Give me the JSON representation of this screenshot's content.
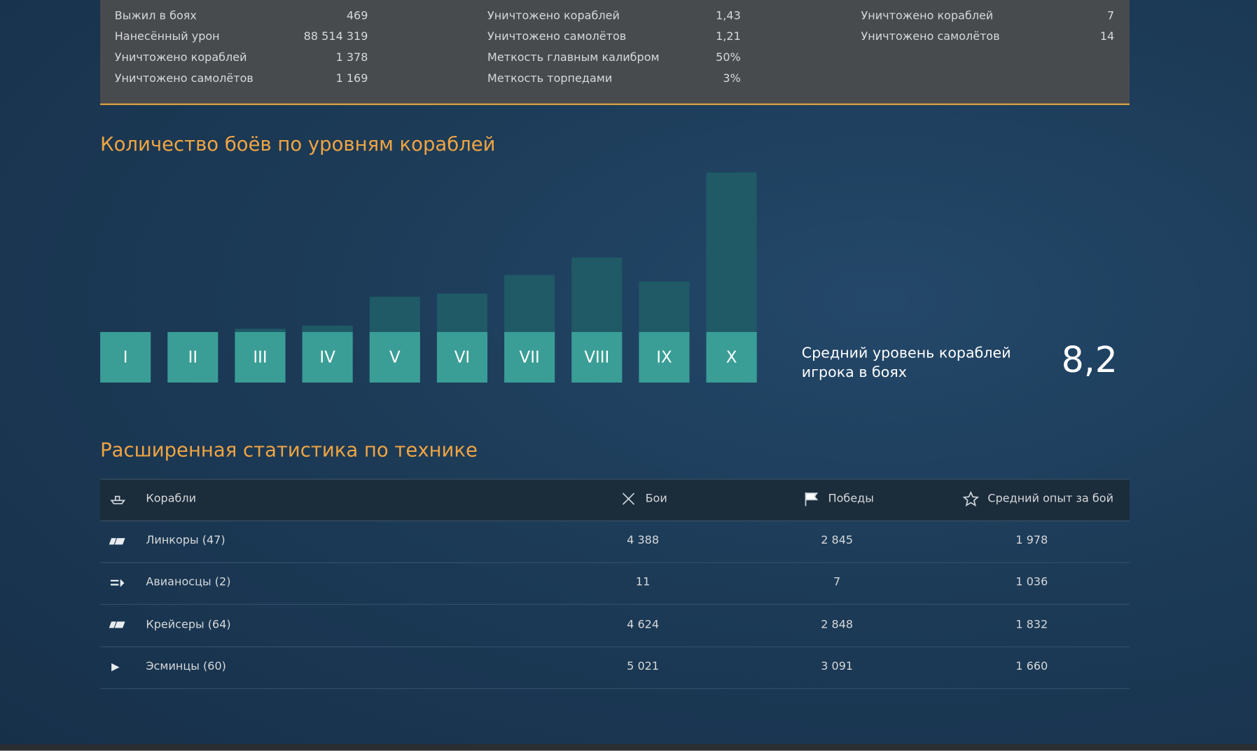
{
  "stats": {
    "columns": [
      [
        {
          "label": "Выжил в боях",
          "value": "469"
        },
        {
          "label": "Нанесённый урон",
          "value": "88 514 319"
        },
        {
          "label": "Уничтожено кораблей",
          "value": "1 378"
        },
        {
          "label": "Уничтожено самолётов",
          "value": "1 169"
        }
      ],
      [
        {
          "label": "Уничтожено кораблей",
          "value": "1,43"
        },
        {
          "label": "Уничтожено самолётов",
          "value": "1,21"
        },
        {
          "label": "Меткость главным калибром",
          "value": "50%"
        },
        {
          "label": "Меткость торпедами",
          "value": "3%"
        }
      ],
      [
        {
          "label": "Уничтожено кораблей",
          "value": "7"
        },
        {
          "label": "Уничтожено самолётов",
          "value": "14"
        }
      ]
    ]
  },
  "chart_data": {
    "type": "bar",
    "title": "Количество боёв по уровням кораблей",
    "categories": [
      "I",
      "II",
      "III",
      "IV",
      "V",
      "VI",
      "VII",
      "VIII",
      "IX",
      "X"
    ],
    "values": [
      0,
      0,
      105,
      210,
      1165,
      1270,
      1880,
      2460,
      1670,
      5270
    ],
    "color": "#1f5a66"
  },
  "average": {
    "label": "Средний уровень кораблей игрока в боях",
    "value": "8,2"
  },
  "table": {
    "title": "Расширенная статистика по технике",
    "header": [
      "Корабли",
      "Бои",
      "Победы",
      "Средний опыт за бой"
    ],
    "rows": [
      [
        "Линкоры (47)",
        "4 388",
        "2 845",
        "1 978"
      ],
      [
        "Авианосцы (2)",
        "11",
        "7",
        "1 036"
      ],
      [
        "Крейсеры (64)",
        "4 624",
        "2 848",
        "1 832"
      ],
      [
        "Эсминцы (60)",
        "5 021",
        "3 091",
        "1 660"
      ]
    ]
  }
}
